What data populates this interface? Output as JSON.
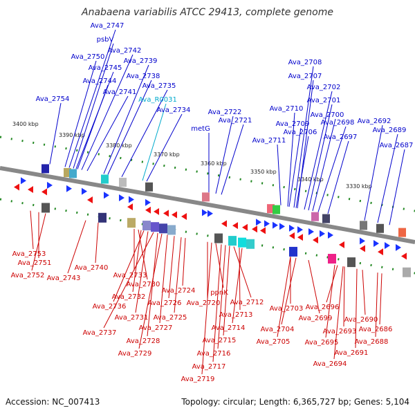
{
  "title": "Anabaena variabilis ATCC 29413, complete genome",
  "footer": {
    "accession": "Accession: NC_007413",
    "summary": "Topology: circular; Length: 6,365,727 bp; Genes: 5,104"
  },
  "colors": {
    "forward_label": "#0000cc",
    "reverse_label": "#cc0000",
    "rna_label": "#00aacc",
    "backbone": "#888888",
    "tick_dots": "#228822"
  },
  "ticks": [
    "3400 kbp",
    "3390 kbp",
    "3380 kbp",
    "3370 kbp",
    "3360 kbp",
    "3350 kbp",
    "3340 kbp",
    "3330 kbp"
  ],
  "forward_labels": [
    "Ava_2747",
    "psbV",
    "Ava_2742",
    "Ava_2750",
    "Ava_2745",
    "Ava_2739",
    "Ava_2738",
    "Ava_2744",
    "Ava_2741",
    "Ava_2735",
    "Ava_2754",
    "Ava_2734",
    "Ava_2722",
    "metG",
    "Ava_2721",
    "Ava_2708",
    "Ava_2707",
    "Ava_2702",
    "Ava_2701",
    "Ava_2710",
    "Ava_2700",
    "Ava_2709",
    "Ava_2698",
    "Ava_2706",
    "Ava_2711",
    "Ava_2697",
    "Ava_2692",
    "Ava_2689",
    "Ava_2687"
  ],
  "rna_labels": [
    "Ava_R0031"
  ],
  "reverse_labels": [
    "Ava_2753",
    "Ava_2751",
    "Ava_2752",
    "Ava_2740",
    "Ava_2743",
    "Ava_2733",
    "Ava_2730",
    "Ava_2732",
    "Ava_2736",
    "Ava_2731",
    "Ava_2737",
    "Ava_2728",
    "Ava_2729",
    "Ava_2727",
    "Ava_2726",
    "Ava_2725",
    "Ava_2724",
    "Ava_2720",
    "ppnK",
    "Ava_2712",
    "Ava_2713",
    "Ava_2714",
    "Ava_2715",
    "Ava_2716",
    "Ava_2717",
    "Ava_2719",
    "Ava_2703",
    "Ava_2699",
    "Ava_2704",
    "Ava_2705",
    "Ava_2696",
    "Ava_2693",
    "Ava_2690",
    "Ava_2686",
    "Ava_2695",
    "Ava_2688",
    "Ava_2691",
    "Ava_2694"
  ]
}
